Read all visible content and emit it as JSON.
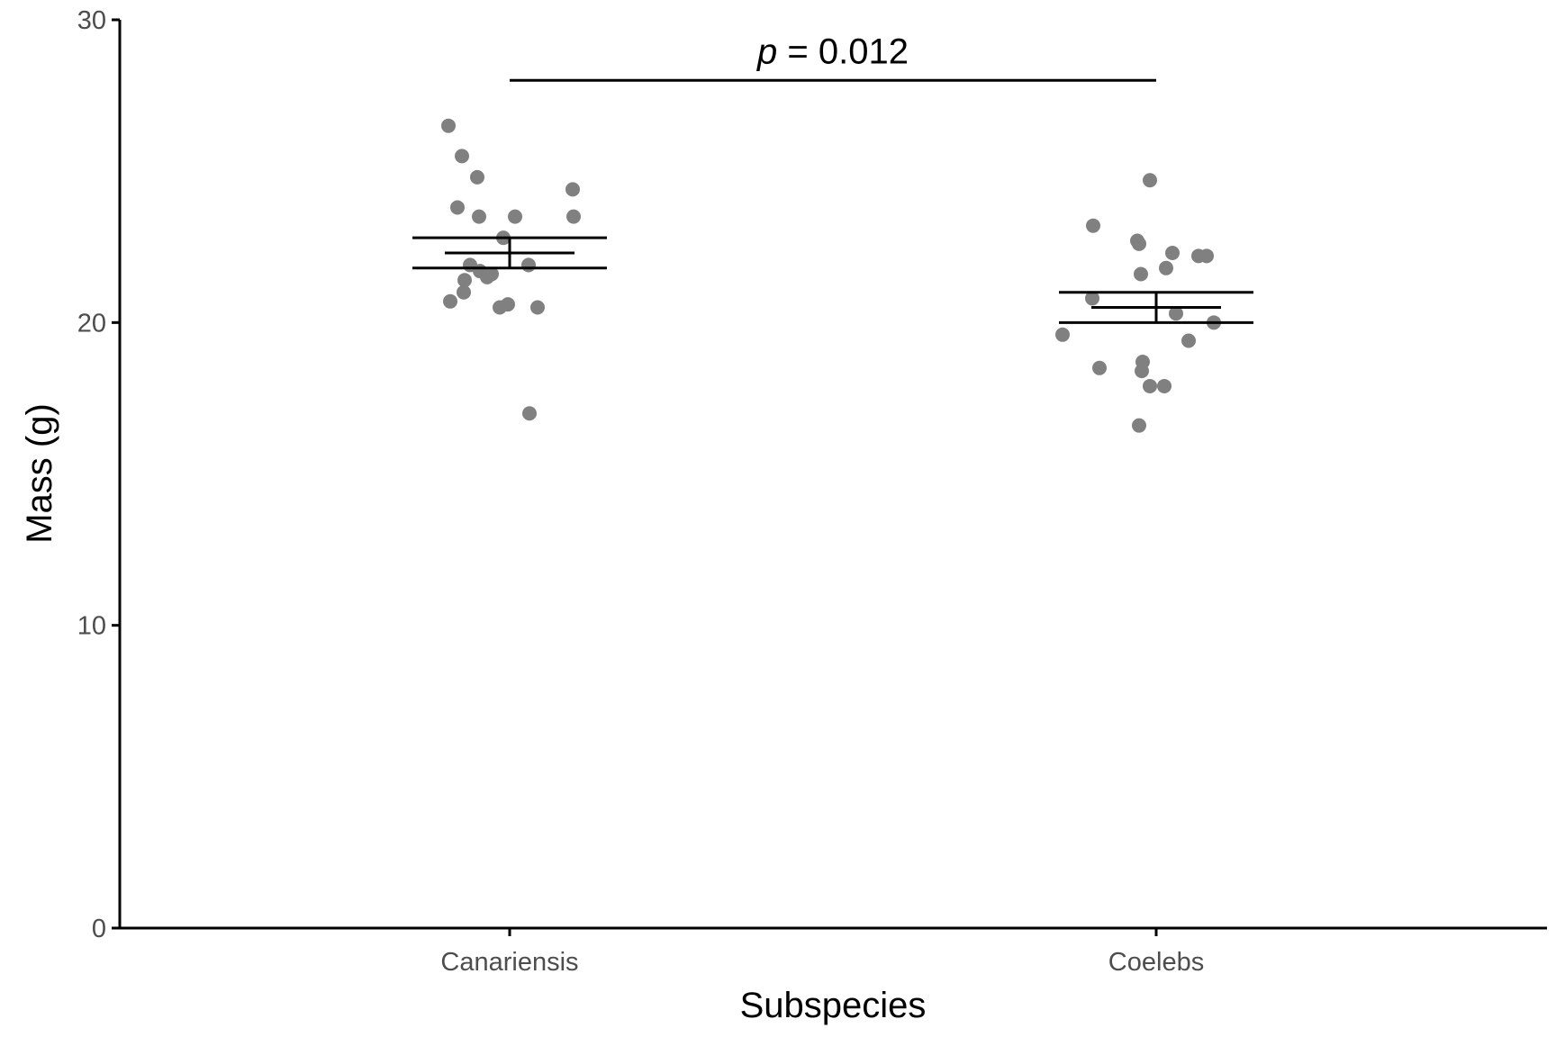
{
  "chart_data": {
    "type": "scatter",
    "title": "",
    "xlabel": "Subspecies",
    "ylabel": "Mass (g)",
    "categories": [
      "Canariensis",
      "Coelebs"
    ],
    "yticks": [
      "0",
      "10",
      "20",
      "30"
    ],
    "ylim": [
      0,
      30
    ],
    "grid": false,
    "legend": "none",
    "point_color": "#808080",
    "line_color": "#000000",
    "points": [
      {
        "category": "Canariensis",
        "values": [
          26.5,
          25.5,
          24.8,
          24.4,
          23.8,
          23.5,
          23.5,
          23.5,
          22.8,
          21.9,
          21.9,
          21.7,
          21.6,
          21.5,
          21.4,
          21.0,
          20.7,
          20.6,
          20.5,
          20.5,
          17.0
        ]
      },
      {
        "category": "Coelebs",
        "values": [
          24.7,
          23.2,
          22.7,
          22.6,
          22.3,
          22.2,
          22.2,
          21.8,
          21.6,
          20.8,
          20.3,
          20.0,
          19.6,
          19.4,
          18.7,
          18.5,
          18.4,
          17.9,
          17.9,
          16.6
        ]
      }
    ],
    "summary": [
      {
        "category": "Canariensis",
        "mean": 22.3,
        "ci_low": 21.8,
        "ci_high": 22.8
      },
      {
        "category": "Coelebs",
        "mean": 20.5,
        "ci_low": 20.0,
        "ci_high": 21.0
      }
    ],
    "annotation": {
      "p_symbol": "p",
      "p_value": " = 0.012",
      "from": "Canariensis",
      "to": "Coelebs",
      "y": 28.0
    }
  }
}
